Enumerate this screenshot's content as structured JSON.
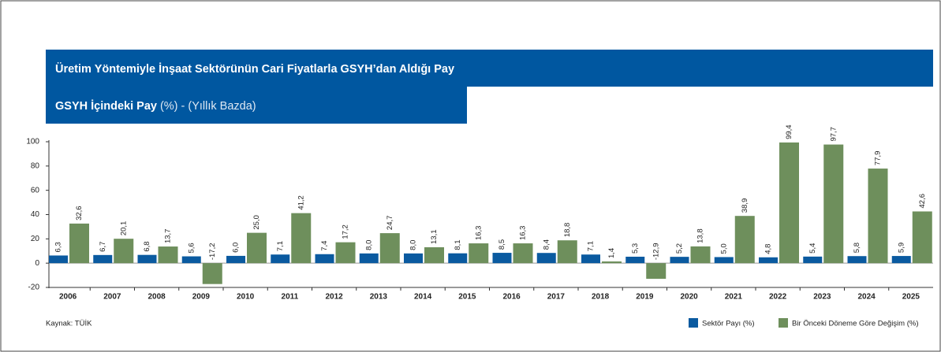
{
  "chart_data": {
    "type": "bar",
    "title": "Üretim Yöntemiyle İnşaat Sektörünün Cari Fiyatlarla GSYH’dan Aldığı Pay",
    "subtitle": [
      "GSYH İçindeki Pay",
      "(%) - (Yıllık Bazda)"
    ],
    "source": "Kaynak: TÜİK",
    "categories": [
      "2006",
      "2007",
      "2008",
      "2009",
      "2010",
      "2011",
      "2012",
      "2013",
      "2014",
      "2015",
      "2016",
      "2017",
      "2018",
      "2019",
      "2020",
      "2021",
      "2022",
      "2023",
      "2024",
      "2025"
    ],
    "series": [
      {
        "name": "Sektör Payı (%)",
        "color": "#0a5aa0",
        "values": [
          6.3,
          6.7,
          6.8,
          5.6,
          6.0,
          7.1,
          7.4,
          8.0,
          8.0,
          8.1,
          8.5,
          8.4,
          7.1,
          5.3,
          5.2,
          5.0,
          4.8,
          5.4,
          5.8,
          5.9
        ],
        "value_labels": [
          "6,3",
          "6,7",
          "6,8",
          "5,6",
          "6,0",
          "7,1",
          "7,4",
          "8,0",
          "8,0",
          "8,1",
          "8,5",
          "8,4",
          "7,1",
          "5,3",
          "5,2",
          "5,0",
          "4,8",
          "5,4",
          "5,8",
          "5,9"
        ]
      },
      {
        "name": "Bir Önceki Döneme Göre Değişim (%)",
        "color": "#6e8f5c",
        "values": [
          32.6,
          20.1,
          13.7,
          -17.2,
          25.0,
          41.2,
          17.2,
          24.7,
          13.1,
          16.3,
          16.3,
          18.8,
          1.4,
          -12.9,
          13.8,
          38.9,
          99.4,
          97.7,
          77.9,
          42.6
        ],
        "value_labels": [
          "32,6",
          "20,1",
          "13,7",
          "-17,2",
          "25,0",
          "41,2",
          "17,2",
          "24,7",
          "13,1",
          "16,3",
          "16,3",
          "18,8",
          "1,4",
          "-12,9",
          "13,8",
          "38,9",
          "99,4",
          "97,7",
          "77,9",
          "42,6"
        ]
      }
    ],
    "ylim": [
      -20,
      100
    ],
    "yticks": [
      -20,
      0,
      20,
      40,
      60,
      80,
      100
    ],
    "grid": false
  }
}
